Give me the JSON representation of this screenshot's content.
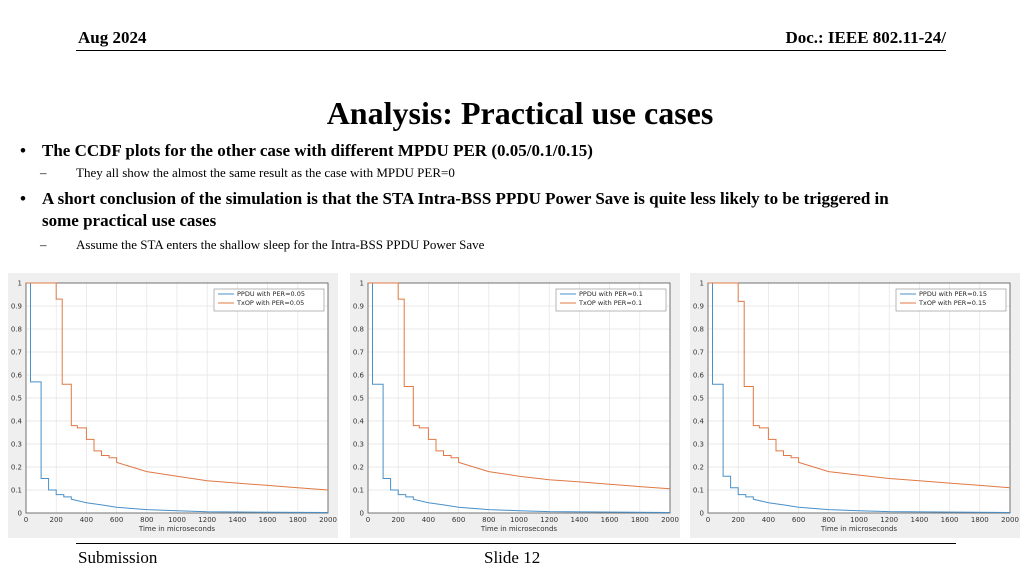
{
  "header": {
    "date": "Aug 2024",
    "doc": "Doc.: IEEE 802.11-24/"
  },
  "title": "Analysis: Practical use cases",
  "bullets": [
    {
      "text": "The CCDF plots for the other case with different MPDU PER (0.05/0.1/0.15)",
      "sub": "They all show the almost the same result as the case with MPDU PER=0"
    },
    {
      "text": "A short conclusion of the simulation is that the STA Intra-BSS PPDU Power Save is quite less likely to be triggered in some practical use cases",
      "sub": "Assume the STA enters the shallow sleep for the Intra-BSS PPDU Power Save"
    }
  ],
  "bullet_symbol": "•",
  "dash_symbol": "–",
  "footer": {
    "left": "Submission",
    "center": "Slide 12"
  },
  "colors": {
    "ppdu": "#4a90c8",
    "txop": "#e07845"
  },
  "chart_data": [
    {
      "type": "line",
      "title": "",
      "xlabel": "Time in microseconds",
      "ylabel": "",
      "xlim": [
        0,
        2000
      ],
      "ylim": [
        0,
        1
      ],
      "xticks": [
        0,
        200,
        400,
        600,
        800,
        1000,
        1200,
        1400,
        1600,
        1800,
        2000
      ],
      "yticks": [
        "0",
        "0.1",
        "0.2",
        "0.3",
        "0.4",
        "0.5",
        "0.6",
        "0.7",
        "0.8",
        "0.9",
        "1"
      ],
      "grid": true,
      "legend_position": "top-right",
      "series": [
        {
          "name": "PPDU with PER=0.05",
          "x": [
            0,
            30,
            30,
            100,
            100,
            150,
            150,
            200,
            200,
            250,
            250,
            300,
            300,
            400,
            500,
            600,
            800,
            1000,
            1200,
            2000
          ],
          "y": [
            1,
            1,
            0.57,
            0.57,
            0.15,
            0.15,
            0.1,
            0.1,
            0.08,
            0.08,
            0.07,
            0.07,
            0.06,
            0.045,
            0.035,
            0.025,
            0.015,
            0.01,
            0.005,
            0.002
          ]
        },
        {
          "name": "TxOP with PER=0.05",
          "x": [
            0,
            200,
            200,
            240,
            240,
            300,
            300,
            340,
            340,
            400,
            400,
            450,
            450,
            500,
            500,
            550,
            550,
            600,
            600,
            700,
            800,
            1000,
            1200,
            1400,
            1600,
            1800,
            2000
          ],
          "y": [
            1,
            1,
            0.93,
            0.93,
            0.56,
            0.56,
            0.38,
            0.38,
            0.37,
            0.37,
            0.32,
            0.32,
            0.27,
            0.27,
            0.25,
            0.25,
            0.24,
            0.24,
            0.22,
            0.2,
            0.18,
            0.16,
            0.14,
            0.13,
            0.12,
            0.11,
            0.1
          ]
        }
      ]
    },
    {
      "type": "line",
      "title": "",
      "xlabel": "Time in microseconds",
      "ylabel": "",
      "xlim": [
        0,
        2000
      ],
      "ylim": [
        0,
        1
      ],
      "xticks": [
        0,
        200,
        400,
        600,
        800,
        1000,
        1200,
        1400,
        1600,
        1800,
        2000
      ],
      "yticks": [
        "0",
        "0.1",
        "0.2",
        "0.3",
        "0.4",
        "0.5",
        "0.6",
        "0.7",
        "0.8",
        "0.9",
        "1"
      ],
      "grid": true,
      "legend_position": "top-right",
      "series": [
        {
          "name": "PPDU with PER=0.1",
          "x": [
            0,
            30,
            30,
            100,
            100,
            150,
            150,
            200,
            200,
            250,
            250,
            300,
            300,
            400,
            500,
            600,
            800,
            1000,
            1200,
            2000
          ],
          "y": [
            1,
            1,
            0.56,
            0.56,
            0.15,
            0.15,
            0.1,
            0.1,
            0.08,
            0.08,
            0.07,
            0.07,
            0.06,
            0.045,
            0.035,
            0.025,
            0.015,
            0.01,
            0.006,
            0.002
          ]
        },
        {
          "name": "TxOP with PER=0.1",
          "x": [
            0,
            200,
            200,
            240,
            240,
            300,
            300,
            340,
            340,
            400,
            400,
            450,
            450,
            500,
            500,
            550,
            550,
            600,
            600,
            700,
            800,
            1000,
            1200,
            1400,
            1600,
            1800,
            2000
          ],
          "y": [
            1,
            1,
            0.93,
            0.93,
            0.55,
            0.55,
            0.38,
            0.38,
            0.37,
            0.37,
            0.32,
            0.32,
            0.27,
            0.27,
            0.25,
            0.25,
            0.24,
            0.24,
            0.22,
            0.2,
            0.18,
            0.16,
            0.145,
            0.135,
            0.125,
            0.115,
            0.105
          ]
        }
      ]
    },
    {
      "type": "line",
      "title": "",
      "xlabel": "Time in microseconds",
      "ylabel": "",
      "xlim": [
        0,
        2000
      ],
      "ylim": [
        0,
        1
      ],
      "xticks": [
        0,
        200,
        400,
        600,
        800,
        1000,
        1200,
        1400,
        1600,
        1800,
        2000
      ],
      "yticks": [
        "0",
        "0.1",
        "0.2",
        "0.3",
        "0.4",
        "0.5",
        "0.6",
        "0.7",
        "0.8",
        "0.9",
        "1"
      ],
      "grid": true,
      "legend_position": "top-right",
      "series": [
        {
          "name": "PPDU with PER=0.15",
          "x": [
            0,
            30,
            30,
            100,
            100,
            150,
            150,
            200,
            200,
            250,
            250,
            300,
            300,
            400,
            500,
            600,
            800,
            1000,
            1200,
            2000
          ],
          "y": [
            1,
            1,
            0.56,
            0.56,
            0.16,
            0.16,
            0.11,
            0.11,
            0.08,
            0.08,
            0.07,
            0.07,
            0.06,
            0.045,
            0.035,
            0.025,
            0.015,
            0.01,
            0.006,
            0.002
          ]
        },
        {
          "name": "TxOP with PER=0.15",
          "x": [
            0,
            200,
            200,
            240,
            240,
            300,
            300,
            340,
            340,
            400,
            400,
            450,
            450,
            500,
            500,
            550,
            550,
            600,
            600,
            700,
            800,
            1000,
            1200,
            1400,
            1600,
            1800,
            2000
          ],
          "y": [
            1,
            1,
            0.92,
            0.92,
            0.55,
            0.55,
            0.38,
            0.38,
            0.37,
            0.37,
            0.32,
            0.32,
            0.27,
            0.27,
            0.25,
            0.25,
            0.24,
            0.24,
            0.22,
            0.2,
            0.18,
            0.165,
            0.15,
            0.14,
            0.13,
            0.12,
            0.11
          ]
        }
      ]
    }
  ]
}
